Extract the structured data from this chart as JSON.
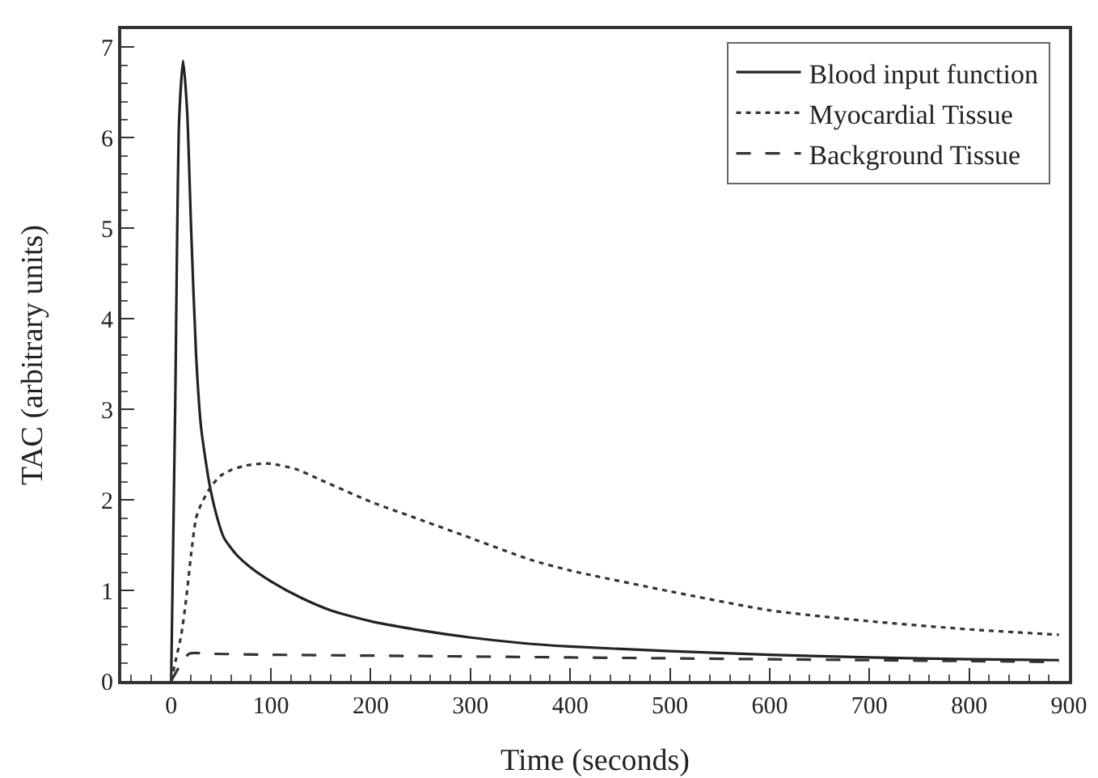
{
  "chart_data": {
    "type": "line",
    "xlabel": "Time (seconds)",
    "ylabel": "TAC (arbitrary units)",
    "xlim": [
      -50,
      900
    ],
    "xticks": [
      0,
      100,
      200,
      300,
      400,
      500,
      600,
      700,
      800,
      900
    ],
    "ylim": [
      0,
      7.2
    ],
    "yticks": [
      0,
      1,
      2,
      3,
      4,
      5,
      6,
      7
    ],
    "grid": false,
    "legend": "top right",
    "marker": "none",
    "series": [
      {
        "name": "Blood input function",
        "color": "#222222",
        "line_style": "solid",
        "x": [
          0,
          4,
          8,
          12,
          16,
          20,
          25,
          30,
          38,
          45,
          53,
          65,
          80,
          100,
          130,
          160,
          200,
          250,
          300,
          350,
          400,
          500,
          600,
          700,
          800,
          890
        ],
        "values": [
          0,
          3.0,
          6.2,
          6.85,
          6.3,
          5.0,
          3.6,
          2.8,
          2.2,
          1.85,
          1.58,
          1.4,
          1.25,
          1.1,
          0.92,
          0.78,
          0.66,
          0.56,
          0.48,
          0.42,
          0.38,
          0.33,
          0.29,
          0.26,
          0.24,
          0.23
        ]
      },
      {
        "name": "Myocardial Tissue",
        "color": "#333333",
        "line_style": "dotted",
        "x": [
          0,
          5,
          10,
          15,
          20,
          25,
          30,
          40,
          50,
          60,
          75,
          90,
          100,
          125,
          150,
          200,
          250,
          300,
          360,
          400,
          500,
          600,
          700,
          800,
          890
        ],
        "values": [
          0,
          0.25,
          0.5,
          0.9,
          1.4,
          1.8,
          1.95,
          2.15,
          2.27,
          2.33,
          2.38,
          2.4,
          2.4,
          2.34,
          2.22,
          1.98,
          1.78,
          1.58,
          1.34,
          1.22,
          0.99,
          0.78,
          0.66,
          0.57,
          0.51
        ]
      },
      {
        "name": "Background Tissue",
        "color": "#333333",
        "line_style": "dashed",
        "x": [
          0,
          18,
          38,
          100,
          200,
          300,
          400,
          500,
          600,
          700,
          800,
          890
        ],
        "values": [
          0,
          0.3,
          0.3,
          0.29,
          0.28,
          0.27,
          0.26,
          0.25,
          0.24,
          0.23,
          0.22,
          0.21
        ]
      }
    ]
  }
}
